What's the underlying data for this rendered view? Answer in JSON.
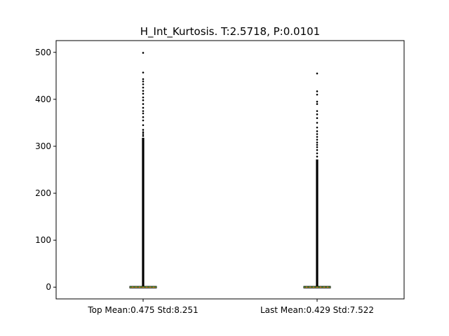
{
  "chart_data": {
    "type": "box",
    "title": "H_Int_Kurtosis. T:2.5718, P:0.0101",
    "xlabel": "",
    "ylabel": "",
    "categories": [
      "Top Mean:0.475 Std:8.251",
      "Last Mean:0.429 Std:7.522"
    ],
    "ylim": [
      -25,
      525
    ],
    "yticks": [
      0,
      100,
      200,
      300,
      400,
      500
    ],
    "grid": false,
    "box_color": "#000000",
    "median_color": "#e8a33b",
    "mean_color": "#2ca02c",
    "series": [
      {
        "whisker_low": -0.5,
        "q1": -0.2,
        "median": 0.0,
        "q3": 0.2,
        "whisker_high": 0.5,
        "mean": 0.475,
        "outlier_dense_range": [
          1,
          318
        ],
        "outliers": [
          322,
          326,
          330,
          335,
          345,
          355,
          362,
          370,
          375,
          382,
          390,
          398,
          404,
          412,
          418,
          425,
          432,
          438,
          443,
          457,
          499
        ]
      },
      {
        "whisker_low": -0.5,
        "q1": -0.2,
        "median": 0.0,
        "q3": 0.2,
        "whisker_high": 0.5,
        "mean": 0.429,
        "outlier_dense_range": [
          1,
          272
        ],
        "outliers": [
          278,
          285,
          292,
          298,
          303,
          308,
          314,
          320,
          326,
          332,
          340,
          350,
          360,
          368,
          375,
          390,
          395,
          410,
          417,
          455
        ]
      }
    ]
  }
}
